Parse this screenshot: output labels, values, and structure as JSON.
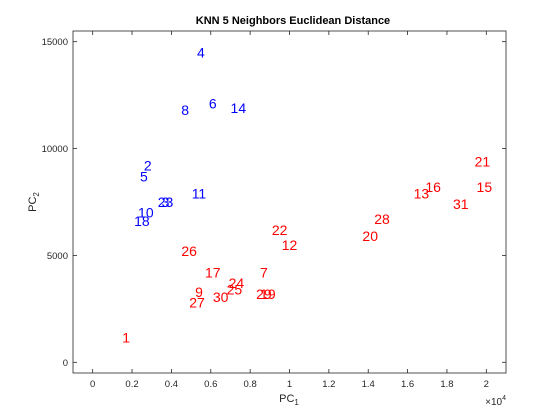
{
  "chart_data": {
    "type": "scatter",
    "title": "KNN 5 Neighbors Euclidean Distance",
    "xlabel": "PC",
    "xlabel_sub": "1",
    "ylabel": "PC",
    "ylabel_sub": "2",
    "x_exponent_label": "×10",
    "x_exponent_power": "4",
    "xlim": [
      -0.1,
      2.1
    ],
    "ylim": [
      -500,
      15500
    ],
    "xticks": [
      0,
      0.2,
      0.4,
      0.6,
      0.8,
      1,
      1.2,
      1.4,
      1.6,
      1.8,
      2
    ],
    "xtick_labels": [
      "0",
      "0.2",
      "0.4",
      "0.6",
      "0.8",
      "1",
      "1.2",
      "1.4",
      "1.6",
      "1.8",
      "2"
    ],
    "yticks": [
      0,
      5000,
      10000,
      15000
    ],
    "ytick_labels": [
      "0",
      "5000",
      "10000",
      "15000"
    ],
    "grid": false,
    "marker": "text-label",
    "colors": {
      "class_blue": "#0000ff",
      "class_red": "#ff0000"
    },
    "points": [
      {
        "label": "1",
        "x": 0.17,
        "y": 1150,
        "class": "class_red"
      },
      {
        "label": "2",
        "x": 0.28,
        "y": 9200,
        "class": "class_blue"
      },
      {
        "label": "3",
        "x": 0.37,
        "y": 7500,
        "class": "class_blue"
      },
      {
        "label": "4",
        "x": 0.55,
        "y": 14500,
        "class": "class_blue"
      },
      {
        "label": "5",
        "x": 0.26,
        "y": 8700,
        "class": "class_blue"
      },
      {
        "label": "6",
        "x": 0.61,
        "y": 12100,
        "class": "class_blue"
      },
      {
        "label": "7",
        "x": 0.87,
        "y": 4200,
        "class": "class_red"
      },
      {
        "label": "8",
        "x": 0.47,
        "y": 11800,
        "class": "class_blue"
      },
      {
        "label": "9",
        "x": 0.54,
        "y": 3300,
        "class": "class_red"
      },
      {
        "label": "10",
        "x": 0.27,
        "y": 7000,
        "class": "class_blue"
      },
      {
        "label": "11",
        "x": 0.54,
        "y": 7900,
        "class": "class_blue"
      },
      {
        "label": "12",
        "x": 1.0,
        "y": 5500,
        "class": "class_red"
      },
      {
        "label": "13",
        "x": 1.67,
        "y": 7900,
        "class": "class_red"
      },
      {
        "label": "14",
        "x": 0.74,
        "y": 11900,
        "class": "class_blue"
      },
      {
        "label": "15",
        "x": 1.99,
        "y": 8200,
        "class": "class_red"
      },
      {
        "label": "16",
        "x": 1.73,
        "y": 8200,
        "class": "class_red"
      },
      {
        "label": "17",
        "x": 0.61,
        "y": 4200,
        "class": "class_red"
      },
      {
        "label": "18",
        "x": 0.25,
        "y": 6600,
        "class": "class_blue"
      },
      {
        "label": "19",
        "x": 0.89,
        "y": 3200,
        "class": "class_red"
      },
      {
        "label": "20",
        "x": 1.41,
        "y": 5900,
        "class": "class_red"
      },
      {
        "label": "21",
        "x": 1.98,
        "y": 9400,
        "class": "class_red"
      },
      {
        "label": "22",
        "x": 0.95,
        "y": 6200,
        "class": "class_red"
      },
      {
        "label": "23",
        "x": 0.37,
        "y": 7500,
        "class": "class_blue"
      },
      {
        "label": "24",
        "x": 0.73,
        "y": 3700,
        "class": "class_red"
      },
      {
        "label": "25",
        "x": 0.72,
        "y": 3400,
        "class": "class_red"
      },
      {
        "label": "26",
        "x": 0.49,
        "y": 5200,
        "class": "class_red"
      },
      {
        "label": "27",
        "x": 0.53,
        "y": 2800,
        "class": "class_red"
      },
      {
        "label": "28",
        "x": 1.47,
        "y": 6700,
        "class": "class_red"
      },
      {
        "label": "29",
        "x": 0.87,
        "y": 3200,
        "class": "class_red"
      },
      {
        "label": "30",
        "x": 0.65,
        "y": 3050,
        "class": "class_red"
      },
      {
        "label": "31",
        "x": 1.87,
        "y": 7400,
        "class": "class_red"
      }
    ]
  }
}
